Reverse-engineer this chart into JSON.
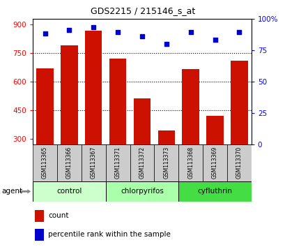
{
  "title": "GDS2215 / 215146_s_at",
  "samples": [
    "GSM113365",
    "GSM113366",
    "GSM113367",
    "GSM113371",
    "GSM113372",
    "GSM113373",
    "GSM113368",
    "GSM113369",
    "GSM113370"
  ],
  "counts": [
    670,
    790,
    865,
    720,
    510,
    345,
    665,
    420,
    710
  ],
  "percentiles": [
    88,
    91,
    93,
    89,
    86,
    80,
    89,
    83,
    89
  ],
  "groups": [
    {
      "label": "control",
      "indices": [
        0,
        1,
        2
      ],
      "color": "#ccffcc"
    },
    {
      "label": "chlorpyrifos",
      "indices": [
        3,
        4,
        5
      ],
      "color": "#aaffaa"
    },
    {
      "label": "cyfluthrin",
      "indices": [
        6,
        7,
        8
      ],
      "color": "#44dd44"
    }
  ],
  "bar_color": "#cc1100",
  "dot_color": "#0000cc",
  "ylim_left": [
    270,
    930
  ],
  "ylim_right": [
    0,
    100
  ],
  "yticks_left": [
    300,
    450,
    600,
    750,
    900
  ],
  "yticks_right": [
    0,
    25,
    50,
    75,
    100
  ],
  "ytick_labels_right": [
    "0",
    "25",
    "50",
    "75",
    "100%"
  ],
  "grid_values": [
    450,
    600,
    750
  ],
  "bg_color": "#ffffff",
  "sample_box_color": "#cccccc",
  "agent_label": "agent",
  "legend_count_label": "count",
  "legend_pct_label": "percentile rank within the sample"
}
